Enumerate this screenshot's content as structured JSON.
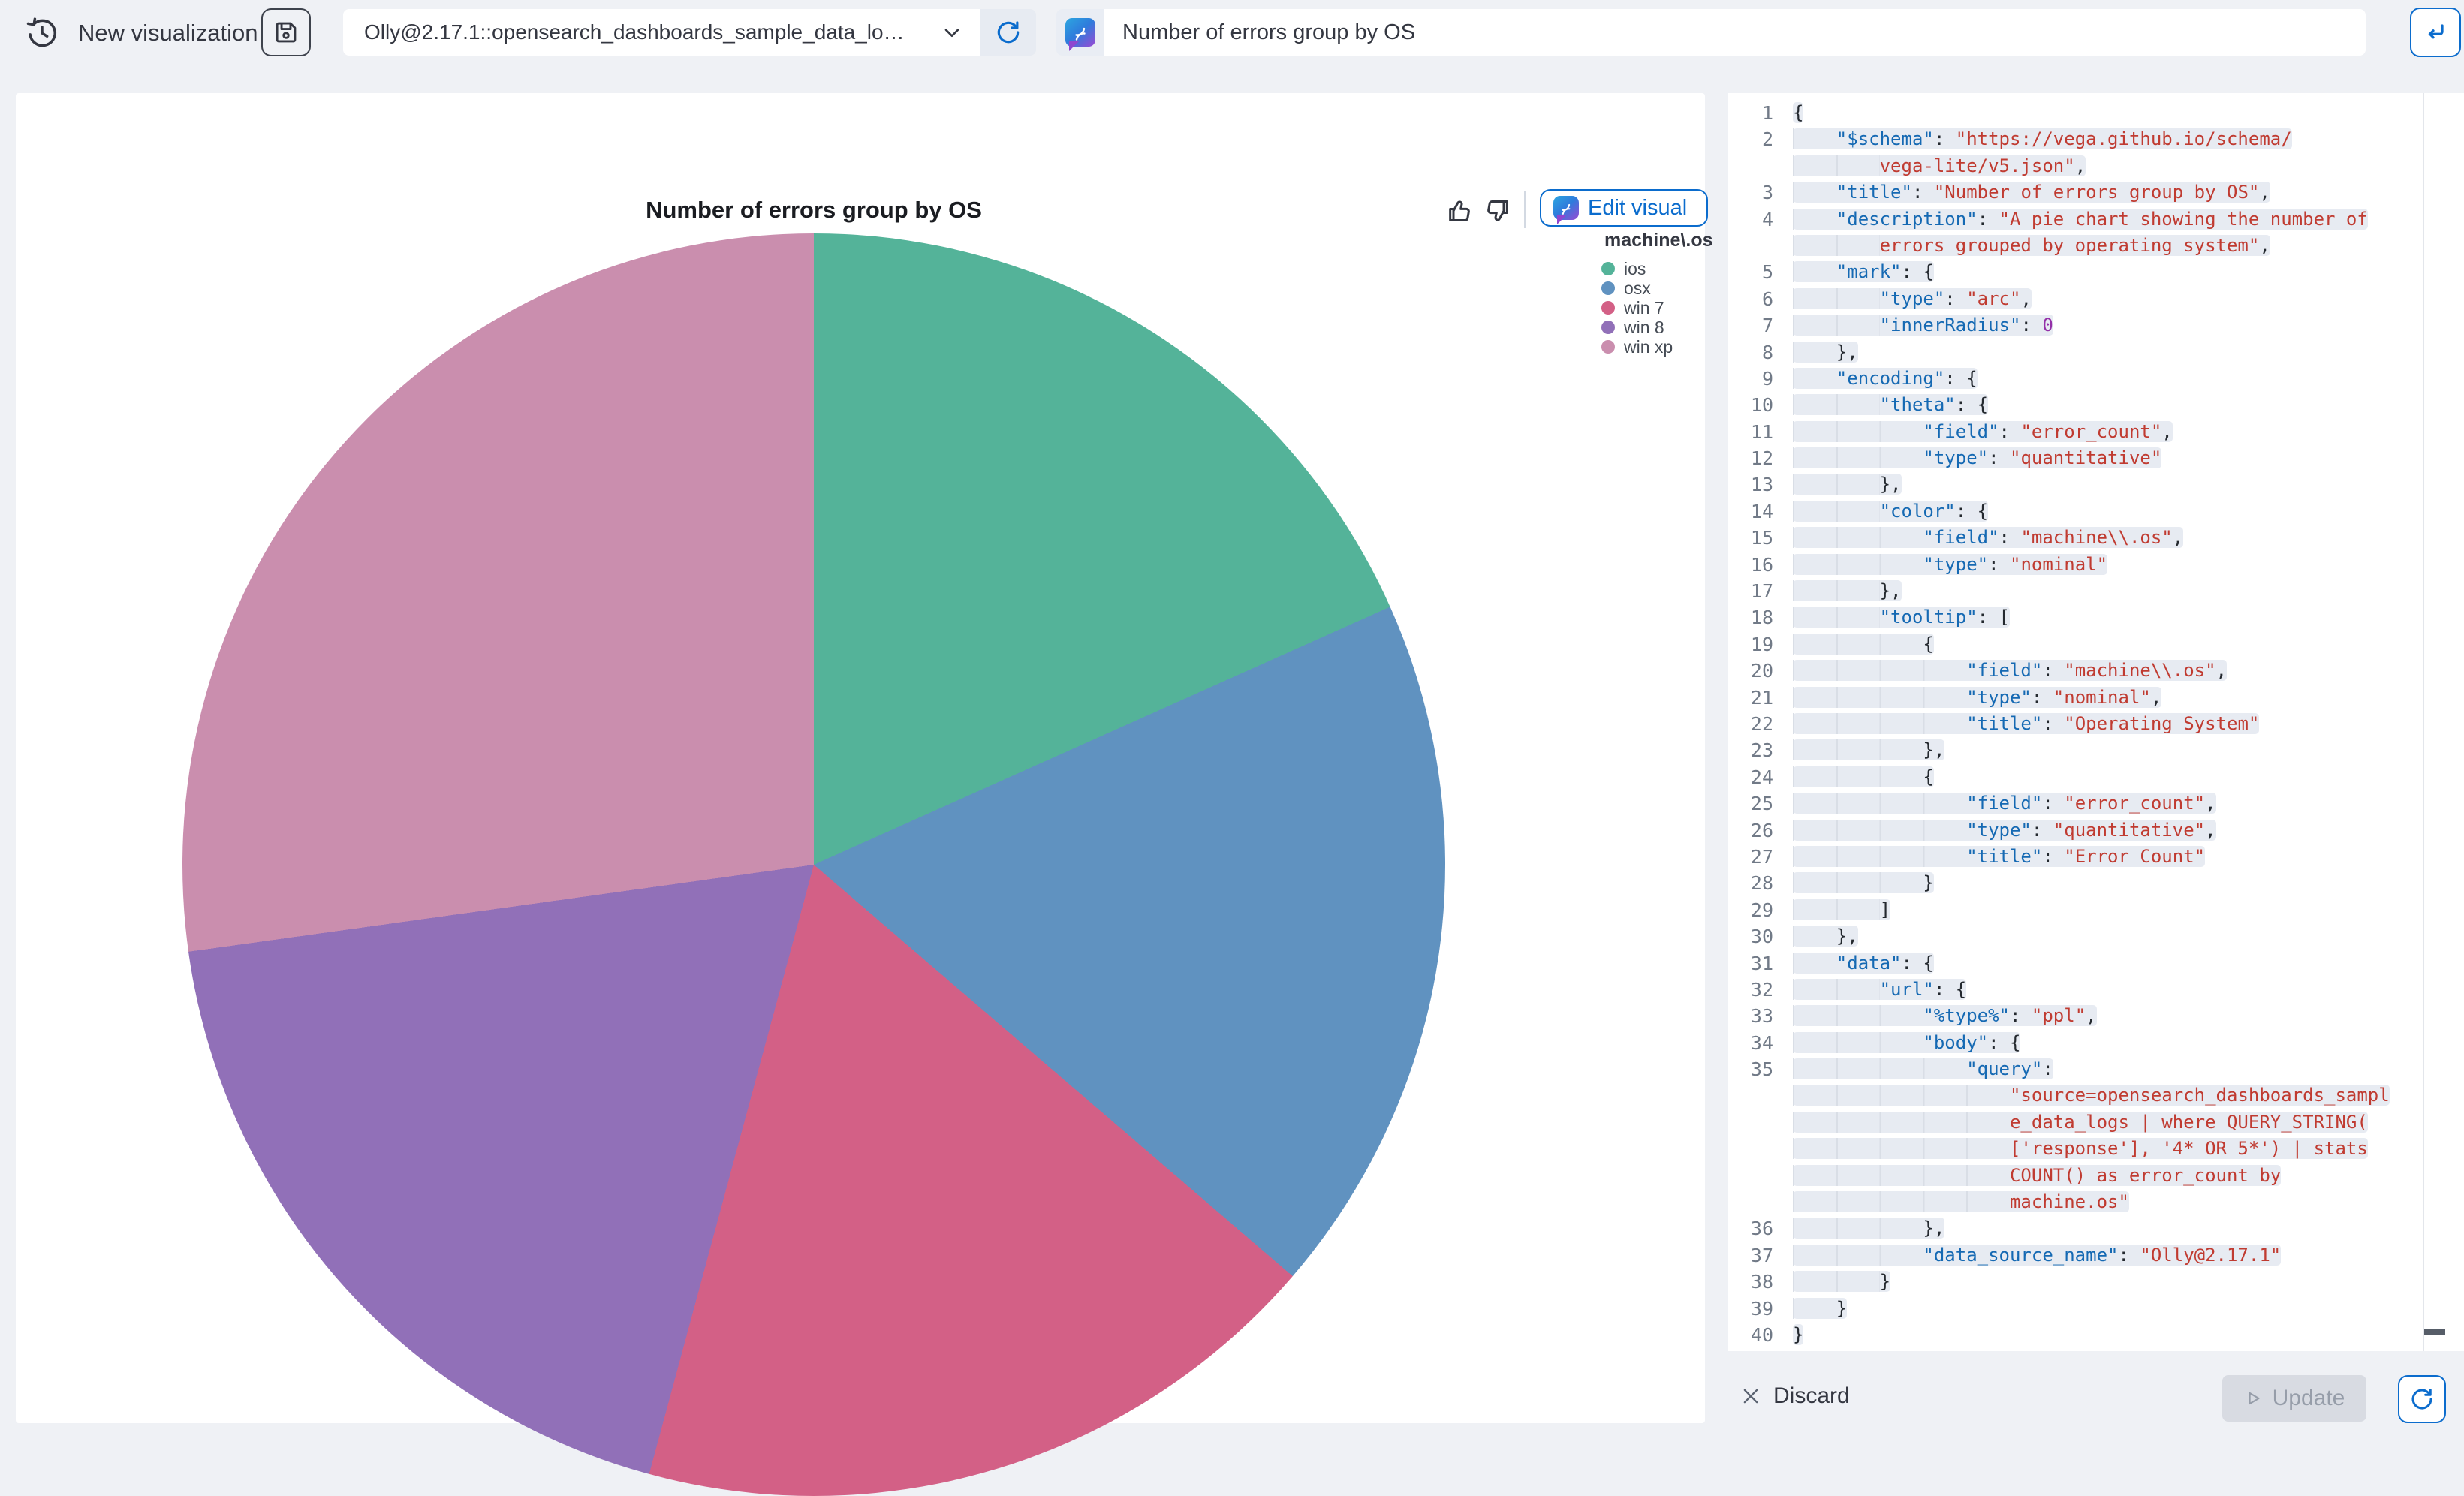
{
  "topbar": {
    "new_viz_label": "New visualization",
    "history_icon": "clock-history-icon",
    "save_icon": "floppy-save-icon",
    "datasource_select": {
      "value": "Olly@2.17.1::opensearch_dashboards_sample_data_lo…",
      "refresh_icon": "refresh-icon"
    },
    "query": {
      "value": "Number of errors group by OS",
      "assistant_icon": "assistant-chat-pen-icon"
    },
    "return_button_icon": "return-arrow-icon"
  },
  "chart_panel": {
    "title": "Number of errors group by OS",
    "feedback": {
      "thumbs_up_icon": "thumbs-up-icon",
      "thumbs_down_icon": "thumbs-down-icon"
    },
    "edit_button_label": "Edit visual",
    "legend": {
      "title": "machine\\.os",
      "items": [
        {
          "label": "ios",
          "color": "#54B399"
        },
        {
          "label": "osx",
          "color": "#6092C0"
        },
        {
          "label": "win 7",
          "color": "#D36086"
        },
        {
          "label": "win 8",
          "color": "#9170B8"
        },
        {
          "label": "win xp",
          "color": "#CA8EAE"
        }
      ]
    }
  },
  "chart_data": {
    "type": "pie",
    "title": "Number of errors group by OS",
    "categories": [
      "ios",
      "osx",
      "win 7",
      "win 8",
      "win xp"
    ],
    "values_percent_est": [
      18.3,
      18.0,
      17.9,
      18.6,
      27.2
    ],
    "colors": [
      "#54B399",
      "#6092C0",
      "#D36086",
      "#9170B8",
      "#CA8EAE"
    ],
    "start_angle_deg": 0,
    "direction": "clockwise",
    "legend_position": "top-right"
  },
  "editor": {
    "language": "json",
    "rows": [
      [
        "1",
        0,
        [
          [
            "p",
            "{"
          ]
        ]
      ],
      [
        "2",
        4,
        [
          [
            "k",
            "\"$schema\""
          ],
          [
            "p",
            ": "
          ],
          [
            "s",
            "\"https://vega.github.io/schema/"
          ]
        ]
      ],
      [
        "",
        8,
        [
          [
            "s",
            "vega-lite/v5.json\""
          ],
          [
            "p",
            ","
          ]
        ]
      ],
      [
        "3",
        4,
        [
          [
            "k",
            "\"title\""
          ],
          [
            "p",
            ": "
          ],
          [
            "s",
            "\"Number of errors group by OS\""
          ],
          [
            "p",
            ","
          ]
        ]
      ],
      [
        "4",
        4,
        [
          [
            "k",
            "\"description\""
          ],
          [
            "p",
            ": "
          ],
          [
            "s",
            "\"A pie chart showing the number of"
          ]
        ]
      ],
      [
        "",
        8,
        [
          [
            "s",
            "errors grouped by operating system\""
          ],
          [
            "p",
            ","
          ]
        ]
      ],
      [
        "5",
        4,
        [
          [
            "k",
            "\"mark\""
          ],
          [
            "p",
            ": {"
          ]
        ]
      ],
      [
        "6",
        8,
        [
          [
            "k",
            "\"type\""
          ],
          [
            "p",
            ": "
          ],
          [
            "s",
            "\"arc\""
          ],
          [
            "p",
            ","
          ]
        ]
      ],
      [
        "7",
        8,
        [
          [
            "k",
            "\"innerRadius\""
          ],
          [
            "p",
            ": "
          ],
          [
            "n",
            "0"
          ]
        ]
      ],
      [
        "8",
        4,
        [
          [
            "p",
            "},"
          ]
        ]
      ],
      [
        "9",
        4,
        [
          [
            "k",
            "\"encoding\""
          ],
          [
            "p",
            ": {"
          ]
        ]
      ],
      [
        "10",
        8,
        [
          [
            "k",
            "\"theta\""
          ],
          [
            "p",
            ": {"
          ]
        ]
      ],
      [
        "11",
        12,
        [
          [
            "k",
            "\"field\""
          ],
          [
            "p",
            ": "
          ],
          [
            "s",
            "\"error_count\""
          ],
          [
            "p",
            ","
          ]
        ]
      ],
      [
        "12",
        12,
        [
          [
            "k",
            "\"type\""
          ],
          [
            "p",
            ": "
          ],
          [
            "s",
            "\"quantitative\""
          ]
        ]
      ],
      [
        "13",
        8,
        [
          [
            "p",
            "},"
          ]
        ]
      ],
      [
        "14",
        8,
        [
          [
            "k",
            "\"color\""
          ],
          [
            "p",
            ": {"
          ]
        ]
      ],
      [
        "15",
        12,
        [
          [
            "k",
            "\"field\""
          ],
          [
            "p",
            ": "
          ],
          [
            "s",
            "\"machine\\\\.os\""
          ],
          [
            "p",
            ","
          ]
        ]
      ],
      [
        "16",
        12,
        [
          [
            "k",
            "\"type\""
          ],
          [
            "p",
            ": "
          ],
          [
            "s",
            "\"nominal\""
          ]
        ]
      ],
      [
        "17",
        8,
        [
          [
            "p",
            "},"
          ]
        ]
      ],
      [
        "18",
        8,
        [
          [
            "k",
            "\"tooltip\""
          ],
          [
            "p",
            ": ["
          ]
        ]
      ],
      [
        "19",
        12,
        [
          [
            "p",
            "{"
          ]
        ]
      ],
      [
        "20",
        16,
        [
          [
            "k",
            "\"field\""
          ],
          [
            "p",
            ": "
          ],
          [
            "s",
            "\"machine\\\\.os\""
          ],
          [
            "p",
            ","
          ]
        ]
      ],
      [
        "21",
        16,
        [
          [
            "k",
            "\"type\""
          ],
          [
            "p",
            ": "
          ],
          [
            "s",
            "\"nominal\""
          ],
          [
            "p",
            ","
          ]
        ]
      ],
      [
        "22",
        16,
        [
          [
            "k",
            "\"title\""
          ],
          [
            "p",
            ": "
          ],
          [
            "s",
            "\"Operating System\""
          ]
        ]
      ],
      [
        "23",
        12,
        [
          [
            "p",
            "},"
          ]
        ]
      ],
      [
        "24",
        12,
        [
          [
            "p",
            "{"
          ]
        ]
      ],
      [
        "25",
        16,
        [
          [
            "k",
            "\"field\""
          ],
          [
            "p",
            ": "
          ],
          [
            "s",
            "\"error_count\""
          ],
          [
            "p",
            ","
          ]
        ]
      ],
      [
        "26",
        16,
        [
          [
            "k",
            "\"type\""
          ],
          [
            "p",
            ": "
          ],
          [
            "s",
            "\"quantitative\""
          ],
          [
            "p",
            ","
          ]
        ]
      ],
      [
        "27",
        16,
        [
          [
            "k",
            "\"title\""
          ],
          [
            "p",
            ": "
          ],
          [
            "s",
            "\"Error Count\""
          ]
        ]
      ],
      [
        "28",
        12,
        [
          [
            "p",
            "}"
          ]
        ]
      ],
      [
        "29",
        8,
        [
          [
            "p",
            "]"
          ]
        ]
      ],
      [
        "30",
        4,
        [
          [
            "p",
            "},"
          ]
        ]
      ],
      [
        "31",
        4,
        [
          [
            "k",
            "\"data\""
          ],
          [
            "p",
            ": {"
          ]
        ]
      ],
      [
        "32",
        8,
        [
          [
            "k",
            "\"url\""
          ],
          [
            "p",
            ": {"
          ]
        ]
      ],
      [
        "33",
        12,
        [
          [
            "k",
            "\"%type%\""
          ],
          [
            "p",
            ": "
          ],
          [
            "s",
            "\"ppl\""
          ],
          [
            "p",
            ","
          ]
        ]
      ],
      [
        "34",
        12,
        [
          [
            "k",
            "\"body\""
          ],
          [
            "p",
            ": {"
          ]
        ]
      ],
      [
        "35",
        16,
        [
          [
            "k",
            "\"query\""
          ],
          [
            "p",
            ":"
          ]
        ]
      ],
      [
        "",
        20,
        [
          [
            "s",
            "\"source=opensearch_dashboards_sampl"
          ]
        ]
      ],
      [
        "",
        20,
        [
          [
            "s",
            "e_data_logs | where QUERY_STRING("
          ]
        ]
      ],
      [
        "",
        20,
        [
          [
            "s",
            "['response'], '4* OR 5*') | stats"
          ]
        ]
      ],
      [
        "",
        20,
        [
          [
            "s",
            "COUNT() as error_count by"
          ]
        ]
      ],
      [
        "",
        20,
        [
          [
            "s",
            "machine.os\""
          ]
        ]
      ],
      [
        "36",
        12,
        [
          [
            "p",
            "},"
          ]
        ]
      ],
      [
        "37",
        12,
        [
          [
            "k",
            "\"data_source_name\""
          ],
          [
            "p",
            ": "
          ],
          [
            "s",
            "\"Olly@2.17.1\""
          ]
        ]
      ],
      [
        "38",
        8,
        [
          [
            "p",
            "}"
          ]
        ]
      ],
      [
        "39",
        4,
        [
          [
            "p",
            "}"
          ]
        ]
      ],
      [
        "40",
        0,
        [
          [
            "p",
            "}"
          ]
        ]
      ]
    ]
  },
  "footer": {
    "discard_label": "Discard",
    "update_label": "Update",
    "update_disabled": true,
    "refresh_icon": "refresh-icon"
  }
}
